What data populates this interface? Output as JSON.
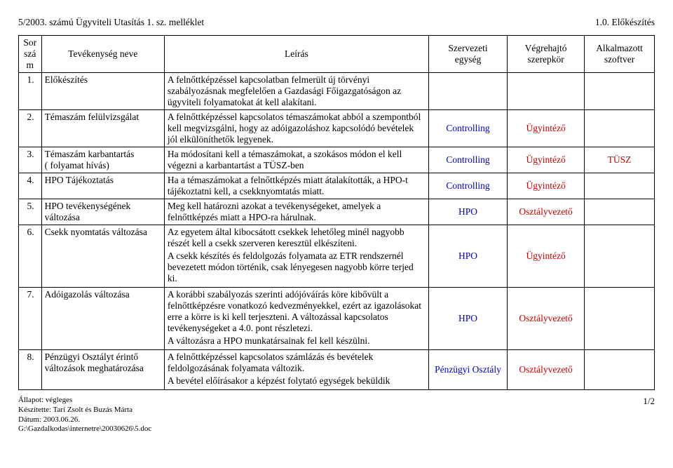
{
  "header": {
    "left": "5/2003. számú Ügyviteli Utasítás 1. sz. melléklet",
    "right": "1.0. Előkészítés"
  },
  "columns": {
    "c1": "Sor\nszá\nm",
    "c2": "Tevékenység neve",
    "c3": "Leírás",
    "c4": "Szervezeti\negység",
    "c5": "Végrehajtó\nszerepkör",
    "c6": "Alkalmazott\nszoftver"
  },
  "rows": [
    {
      "num": "1.",
      "name": "Előkészítés",
      "desc": "A felnőttképzéssel kapcsolatban felmerült új törvényi szabályozásnak megfelelően a Gazdasági Főigazgatóságon az ügyviteli folyamatokat át kell alakítani.",
      "org": "",
      "role": "",
      "soft": ""
    },
    {
      "num": "2.",
      "name": "Témaszám felülvizsgálat",
      "desc": "A felnőttképzéssel kapcsolatos témaszámokat abból a szempontból kell megvizsgálni, hogy az adóigazoláshoz kapcsolódó bevételek jól elkülöníthetők legyenek.",
      "org": "Controlling",
      "role": "Ügyintéző",
      "soft": ""
    },
    {
      "num": "3.",
      "name": "Témaszám karbantartás\n( folyamat hívás)",
      "desc": "Ha módosítani kell a témaszámokat, a szokásos módon el kell végezni a karbantartást a TÜSZ-ben",
      "org": "Controlling",
      "role": "Ügyintéző",
      "soft": "TÜSZ"
    },
    {
      "num": "4.",
      "name": "HPO Tájékoztatás",
      "desc": "Ha a témaszámokat a felnőttképzés miatt átalakították, a HPO-t tájékoztatni kell, a csekknyomtatás miatt.",
      "org": "Controlling",
      "role": "Ügyintéző",
      "soft": ""
    },
    {
      "num": "5.",
      "name": "HPO tevékenységének változása",
      "desc": "Meg kell határozni azokat a tevékenységeket, amelyek a felnőttképzés miatt a HPO-ra hárulnak.",
      "org": "HPO",
      "role": "Osztályvezető",
      "soft": ""
    },
    {
      "num": "6.",
      "name": "Csekk nyomtatás változása",
      "desc_parts": [
        "Az egyetem által kibocsátott csekkek lehetőleg minél nagyobb részét kell a csekk szerveren keresztül elkészíteni.",
        "A csekk készítés és feldolgozás folyamata az ETR rendszernél bevezetett  módon történik, csak lényegesen nagyobb körre terjed ki."
      ],
      "org": "HPO",
      "role": "Ügyintéző",
      "soft": ""
    },
    {
      "num": "7.",
      "name": "Adóigazolás változása",
      "desc_parts": [
        "A korábbi szabályozás szerinti adójóváírás köre kibővült a felnőttképzésre vonatkozó kedvezményekkel, ezért az igazolásokat erre a körre is ki kell terjeszteni. A változással kapcsolatos tevékenységeket a 4.0. pont részletezi.",
        "A változásra a HPO munkatársainak fel kell készülni."
      ],
      "org": "HPO",
      "role": "Osztályvezető",
      "soft": ""
    },
    {
      "num": "8.",
      "name": "Pénzügyi Osztályt érintő változások meghatározása",
      "desc_parts": [
        "A felnőttképzéssel kapcsolatos számlázás és bevételek feldolgozásának folyamata változik.",
        "A bevétel előírásakor a képzést folytató egységek  beküldik"
      ],
      "org": "Pénzügyi Osztály",
      "role": "Osztályvezető",
      "soft": ""
    }
  ],
  "footer": {
    "status": "Állapot: végleges",
    "author": "Készítette: Tari Zsolt és Buzás Márta",
    "date": "Dátum: 2003.06.26.",
    "path": "G:\\Gazdalkodas\\internetre\\20030626\\5.doc",
    "page": "1/2"
  }
}
